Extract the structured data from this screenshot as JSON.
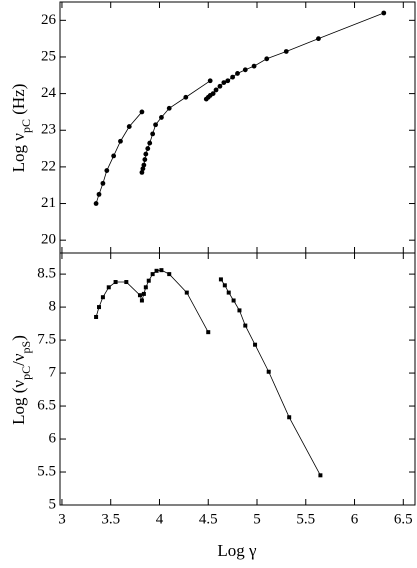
{
  "chart_data": [
    {
      "type": "line",
      "marker": "circle",
      "color": "#000000",
      "ylabel": [
        {
          "text": "Log ν"
        },
        {
          "text": "pC",
          "sub": true
        },
        {
          "text": "  (Hz)"
        }
      ],
      "xlim": [
        2.98,
        6.62
      ],
      "ylim": [
        19.65,
        26.5
      ],
      "yticks": [
        20,
        21,
        22,
        23,
        24,
        25,
        26
      ],
      "series": [
        {
          "x": [
            3.35,
            3.38,
            3.42,
            3.46,
            3.53,
            3.6,
            3.69,
            3.82
          ],
          "values": [
            21.0,
            21.25,
            21.55,
            21.9,
            22.3,
            22.7,
            23.1,
            23.5
          ]
        },
        {
          "x": [
            3.82,
            3.83,
            3.84,
            3.85,
            3.86,
            3.88,
            3.9,
            3.93,
            3.96,
            4.02,
            4.1,
            4.27,
            4.52
          ],
          "values": [
            21.85,
            21.95,
            22.05,
            22.2,
            22.35,
            22.5,
            22.65,
            22.9,
            23.15,
            23.35,
            23.6,
            23.9,
            24.35
          ]
        },
        {
          "x": [
            4.48,
            4.5,
            4.52,
            4.55,
            4.58,
            4.62,
            4.66,
            4.7,
            4.75,
            4.8,
            4.88,
            4.97,
            5.1,
            5.3,
            5.63,
            6.3
          ],
          "values": [
            23.85,
            23.9,
            23.95,
            24.0,
            24.1,
            24.2,
            24.3,
            24.35,
            24.45,
            24.55,
            24.65,
            24.75,
            24.95,
            25.15,
            25.5,
            26.2
          ]
        }
      ]
    },
    {
      "type": "line",
      "marker": "square",
      "color": "#000000",
      "xlabel": "Log γ",
      "ylabel": [
        {
          "text": "Log (ν"
        },
        {
          "text": "pC",
          "sub": true
        },
        {
          "text": "/ν"
        },
        {
          "text": "pS",
          "sub": true
        },
        {
          "text": ")"
        }
      ],
      "xlim": [
        2.98,
        6.62
      ],
      "ylim": [
        5,
        8.82
      ],
      "xticks": [
        3,
        3.5,
        4,
        4.5,
        5,
        5.5,
        6,
        6.5
      ],
      "yticks": [
        5,
        5.5,
        6,
        6.5,
        7,
        7.5,
        8,
        8.5
      ],
      "series": [
        {
          "x": [
            3.35,
            3.38,
            3.42,
            3.48,
            3.55,
            3.66,
            3.8,
            3.82,
            3.84,
            3.86,
            3.89,
            3.93,
            3.97,
            4.02,
            4.1,
            4.28,
            4.5
          ],
          "values": [
            7.85,
            8.0,
            8.15,
            8.3,
            8.38,
            8.38,
            8.18,
            8.1,
            8.2,
            8.3,
            8.4,
            8.5,
            8.55,
            8.56,
            8.5,
            8.22,
            7.62
          ]
        },
        {
          "x": [
            4.63,
            4.67,
            4.71,
            4.76,
            4.82,
            4.88,
            4.98,
            5.12,
            5.33,
            5.65
          ],
          "values": [
            8.42,
            8.33,
            8.22,
            8.1,
            7.95,
            7.72,
            7.43,
            7.02,
            6.33,
            5.45
          ]
        }
      ]
    }
  ]
}
